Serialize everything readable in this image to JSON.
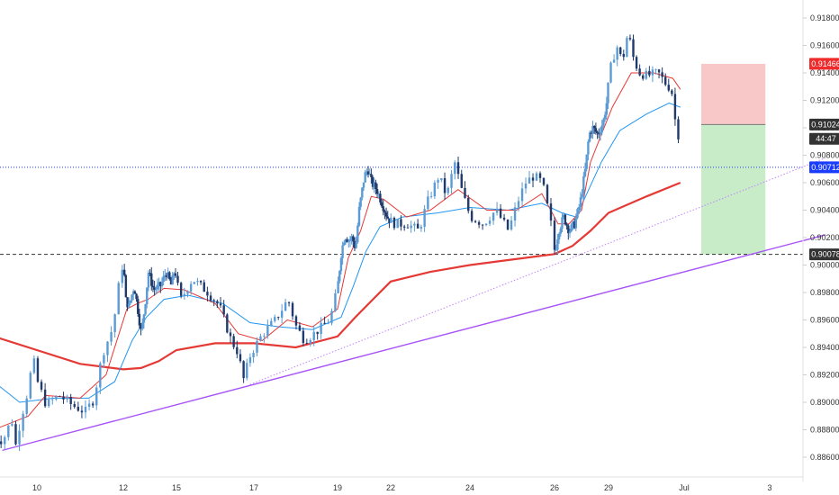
{
  "chart_data": {
    "type": "candlestick",
    "symbol": "",
    "title": "",
    "colors": {
      "up": "#5b9bd5",
      "down": "#1f3a6b",
      "ema_fast": "#e53935",
      "ema_slow": "#2196f3",
      "ma_long": "#e53935",
      "trend_line": "#a855f7",
      "trend_line_dotted": "#c084fc",
      "stop_zone": "#f8c8c8",
      "target_zone": "#c8ecc8",
      "price_tag_red": "#ef2b2b",
      "price_tag_blue": "#1a3cff",
      "price_tag_dark": "#333333",
      "grid": "#ffffff"
    },
    "y_axis": {
      "min": 0.8855,
      "max": 0.9185,
      "ticks": [
        "0.91800",
        "0.91600",
        "0.91400",
        "0.91200",
        "0.91000",
        "0.90800",
        "0.90600",
        "0.90400",
        "0.90200",
        "0.90000",
        "0.89800",
        "0.89600",
        "0.89400",
        "0.89200",
        "0.89000",
        "0.88800",
        "0.88600"
      ]
    },
    "x_axis": {
      "ticks": [
        {
          "label": "10",
          "day": 10
        },
        {
          "label": "12",
          "day": 12
        },
        {
          "label": "15",
          "day": 15
        },
        {
          "label": "17",
          "day": 17
        },
        {
          "label": "19",
          "day": 19
        },
        {
          "label": "22",
          "day": 22
        },
        {
          "label": "24",
          "day": 24
        },
        {
          "label": "26",
          "day": 26
        },
        {
          "label": "29",
          "day": 29
        },
        {
          "label": "Jul",
          "day": 31
        },
        {
          "label": "3",
          "day": 33
        }
      ]
    },
    "price_path": [
      [
        9.0,
        0.8875
      ],
      [
        9.3,
        0.8872
      ],
      [
        9.5,
        0.8888
      ],
      [
        9.6,
        0.8868
      ],
      [
        9.7,
        0.8886
      ],
      [
        9.85,
        0.8905
      ],
      [
        10.0,
        0.8932
      ],
      [
        10.1,
        0.8915
      ],
      [
        10.3,
        0.8898
      ],
      [
        10.6,
        0.8905
      ],
      [
        10.9,
        0.8898
      ],
      [
        11.2,
        0.8893
      ],
      [
        11.4,
        0.8902
      ],
      [
        11.6,
        0.8935
      ],
      [
        11.85,
        0.8955
      ],
      [
        12.0,
        0.899
      ],
      [
        12.1,
        0.9005
      ],
      [
        12.2,
        0.8975
      ],
      [
        12.4,
        0.897
      ],
      [
        12.7,
        0.8985
      ],
      [
        12.9,
        0.8968
      ],
      [
        13.1,
        0.895
      ],
      [
        13.3,
        0.897
      ],
      [
        13.5,
        0.8995
      ],
      [
        13.8,
        0.8982
      ],
      [
        14.2,
        0.8985
      ],
      [
        14.5,
        0.8995
      ],
      [
        14.8,
        0.8985
      ],
      [
        15.0,
        0.8998
      ],
      [
        15.2,
        0.8975
      ],
      [
        15.5,
        0.899
      ],
      [
        15.9,
        0.898
      ],
      [
        16.2,
        0.897
      ],
      [
        16.5,
        0.8945
      ],
      [
        16.7,
        0.8935
      ],
      [
        16.8,
        0.8915
      ],
      [
        17.0,
        0.8935
      ],
      [
        17.3,
        0.895
      ],
      [
        17.6,
        0.896
      ],
      [
        17.9,
        0.8975
      ],
      [
        18.1,
        0.8955
      ],
      [
        18.3,
        0.8945
      ],
      [
        18.6,
        0.8952
      ],
      [
        18.9,
        0.896
      ],
      [
        19.1,
        0.8985
      ],
      [
        19.3,
        0.901
      ],
      [
        19.5,
        0.9022
      ],
      [
        19.7,
        0.9018
      ],
      [
        19.9,
        0.902
      ],
      [
        20.1,
        0.9012
      ],
      [
        20.3,
        0.904
      ],
      [
        20.6,
        0.9065
      ],
      [
        20.8,
        0.907
      ],
      [
        21.0,
        0.906
      ],
      [
        21.3,
        0.9055
      ],
      [
        21.6,
        0.9045
      ],
      [
        21.9,
        0.9035
      ],
      [
        22.2,
        0.903
      ],
      [
        22.5,
        0.903
      ],
      [
        22.8,
        0.9025
      ],
      [
        23.0,
        0.9045
      ],
      [
        23.3,
        0.9065
      ],
      [
        23.5,
        0.905
      ],
      [
        23.7,
        0.9075
      ],
      [
        23.9,
        0.9052
      ],
      [
        24.1,
        0.9035
      ],
      [
        24.4,
        0.903
      ],
      [
        24.7,
        0.904
      ],
      [
        25.0,
        0.9025
      ],
      [
        25.2,
        0.9045
      ],
      [
        25.4,
        0.906
      ],
      [
        25.6,
        0.9065
      ],
      [
        25.8,
        0.906
      ],
      [
        26.0,
        0.903
      ],
      [
        26.1,
        0.9008
      ],
      [
        26.3,
        0.9025
      ],
      [
        26.6,
        0.9035
      ],
      [
        26.9,
        0.9025
      ],
      [
        27.2,
        0.903
      ],
      [
        27.5,
        0.9045
      ],
      [
        27.8,
        0.907
      ],
      [
        28.0,
        0.9095
      ],
      [
        28.2,
        0.91
      ],
      [
        28.5,
        0.9095
      ],
      [
        28.8,
        0.9105
      ],
      [
        29.0,
        0.912
      ],
      [
        29.15,
        0.9145
      ],
      [
        29.3,
        0.916
      ],
      [
        29.45,
        0.9148
      ],
      [
        29.6,
        0.917
      ],
      [
        29.75,
        0.915
      ],
      [
        29.9,
        0.914
      ],
      [
        30.1,
        0.9138
      ],
      [
        30.4,
        0.914
      ],
      [
        30.6,
        0.9132
      ],
      [
        30.75,
        0.9128
      ],
      [
        30.85,
        0.9105
      ],
      [
        30.9,
        0.9095
      ]
    ],
    "ema_fast": [
      [
        9.0,
        0.888
      ],
      [
        9.8,
        0.889
      ],
      [
        10.2,
        0.8905
      ],
      [
        11.0,
        0.8903
      ],
      [
        11.6,
        0.892
      ],
      [
        12.2,
        0.8968
      ],
      [
        12.8,
        0.8972
      ],
      [
        13.4,
        0.8975
      ],
      [
        14.3,
        0.8983
      ],
      [
        15.2,
        0.8982
      ],
      [
        16.0,
        0.8972
      ],
      [
        16.6,
        0.895
      ],
      [
        17.2,
        0.8945
      ],
      [
        17.8,
        0.896
      ],
      [
        18.4,
        0.8955
      ],
      [
        19.0,
        0.8968
      ],
      [
        19.6,
        0.9005
      ],
      [
        20.3,
        0.9025
      ],
      [
        20.9,
        0.905
      ],
      [
        21.6,
        0.9048
      ],
      [
        22.4,
        0.9035
      ],
      [
        23.0,
        0.904
      ],
      [
        23.7,
        0.9055
      ],
      [
        24.4,
        0.904
      ],
      [
        25.1,
        0.904
      ],
      [
        25.7,
        0.9052
      ],
      [
        26.2,
        0.903
      ],
      [
        26.8,
        0.903
      ],
      [
        27.5,
        0.904
      ],
      [
        28.0,
        0.9075
      ],
      [
        28.6,
        0.9095
      ],
      [
        29.1,
        0.9115
      ],
      [
        29.6,
        0.914
      ],
      [
        30.2,
        0.914
      ],
      [
        30.7,
        0.9136
      ],
      [
        30.9,
        0.9128
      ]
    ],
    "ema_slow": [
      [
        9.0,
        0.8915
      ],
      [
        9.6,
        0.89
      ],
      [
        10.4,
        0.8903
      ],
      [
        11.2,
        0.8903
      ],
      [
        11.8,
        0.8915
      ],
      [
        12.5,
        0.8945
      ],
      [
        13.3,
        0.8962
      ],
      [
        14.3,
        0.8975
      ],
      [
        15.3,
        0.8978
      ],
      [
        16.2,
        0.8972
      ],
      [
        16.9,
        0.8958
      ],
      [
        17.6,
        0.8955
      ],
      [
        18.4,
        0.8953
      ],
      [
        19.2,
        0.8962
      ],
      [
        19.9,
        0.8985
      ],
      [
        20.6,
        0.901
      ],
      [
        21.4,
        0.9028
      ],
      [
        22.3,
        0.9035
      ],
      [
        23.2,
        0.9038
      ],
      [
        24.0,
        0.9042
      ],
      [
        24.9,
        0.904
      ],
      [
        25.7,
        0.9045
      ],
      [
        26.4,
        0.9038
      ],
      [
        27.2,
        0.9035
      ],
      [
        27.9,
        0.9055
      ],
      [
        28.6,
        0.9075
      ],
      [
        29.3,
        0.9098
      ],
      [
        30.0,
        0.911
      ],
      [
        30.6,
        0.9118
      ],
      [
        30.9,
        0.9115
      ]
    ],
    "ma_long": [
      [
        9.0,
        0.8948
      ],
      [
        10.0,
        0.8938
      ],
      [
        11.0,
        0.8928
      ],
      [
        12.0,
        0.8924
      ],
      [
        13.0,
        0.8925
      ],
      [
        14.0,
        0.893
      ],
      [
        15.0,
        0.8938
      ],
      [
        16.0,
        0.8943
      ],
      [
        17.0,
        0.8943
      ],
      [
        18.0,
        0.894
      ],
      [
        19.0,
        0.8948
      ],
      [
        20.0,
        0.8962
      ],
      [
        21.0,
        0.8975
      ],
      [
        22.0,
        0.8988
      ],
      [
        23.0,
        0.8995
      ],
      [
        24.0,
        0.9
      ],
      [
        25.0,
        0.9004
      ],
      [
        26.0,
        0.9008
      ],
      [
        27.0,
        0.9014
      ],
      [
        28.0,
        0.9025
      ],
      [
        29.0,
        0.9038
      ],
      [
        30.0,
        0.905
      ],
      [
        30.9,
        0.906
      ]
    ],
    "trend_lines": [
      {
        "style": "solid",
        "from": [
          9.2,
          0.8865
        ],
        "to": [
          34.3,
          0.9022
        ]
      },
      {
        "style": "dotted",
        "from": [
          16.9,
          0.8913
        ],
        "to": [
          34.3,
          0.9078
        ]
      }
    ],
    "horizontal_lines": [
      {
        "style": "dotted",
        "color": "#1a3cff",
        "price": 0.90712
      },
      {
        "style": "dashed",
        "color": "#333333",
        "price": 0.90078
      }
    ],
    "position_tool": {
      "x_start_day": 31.4,
      "x_end_day": 32.9,
      "entry": 0.91024,
      "stop": 0.91466,
      "target": 0.90078
    },
    "price_tags": [
      {
        "label": "0.91466",
        "price": 0.91466,
        "color": "#ef2b2b"
      },
      {
        "label": "0.91024",
        "price": 0.91024,
        "color": "#333333"
      },
      {
        "label": "44:47",
        "price": 0.9092,
        "color": "#333333"
      },
      {
        "label": "0.90712",
        "price": 0.90712,
        "color": "#1a3cff"
      },
      {
        "label": "0.90078",
        "price": 0.90078,
        "color": "#333333"
      }
    ]
  }
}
